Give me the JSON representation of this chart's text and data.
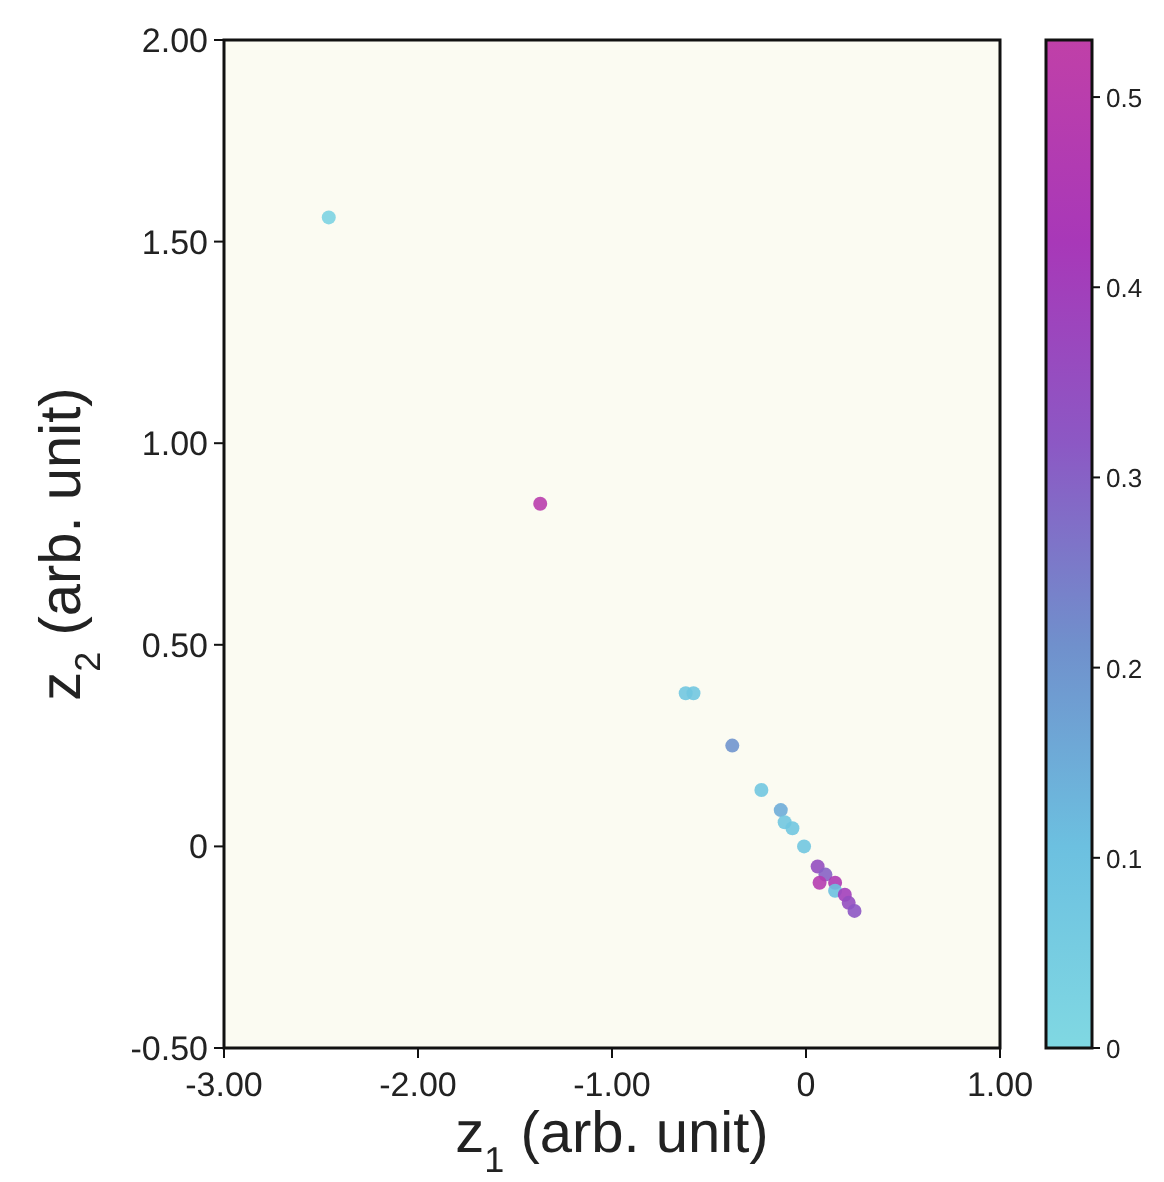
{
  "chart_data": {
    "type": "scatter",
    "xlabel": "z$_{1}$ (arb. unit)",
    "ylabel": "z$_{2}$ (arb. unit)",
    "marker": "circle",
    "grid": false,
    "xlim": [
      -3,
      1
    ],
    "xticks": [
      {
        "value": -3,
        "label": "-3.00"
      },
      {
        "value": -2,
        "label": "-2.00"
      },
      {
        "value": -1,
        "label": "-1.00"
      },
      0,
      {
        "value": 1,
        "label": "1.00"
      }
    ],
    "ylim": [
      -0.5,
      2
    ],
    "yticks": [
      {
        "value": -0.5,
        "label": "-0.50"
      },
      0,
      {
        "value": 0.5,
        "label": "0.50"
      },
      {
        "value": 1,
        "label": "1.00"
      },
      {
        "value": 1.5,
        "label": "1.50"
      },
      {
        "value": 2,
        "label": "2.00"
      }
    ],
    "clim": [
      0,
      0.53
    ],
    "cticks": [
      0,
      0.1,
      0.2,
      0.3,
      0.4,
      0.5
    ],
    "x": [
      -2.46,
      -1.37,
      -0.62,
      -0.58,
      -0.38,
      -0.23,
      -0.13,
      -0.11,
      -0.07,
      -0.01,
      0.06,
      0.1,
      0.07,
      0.15,
      0.15,
      0.2,
      0.22,
      0.25
    ],
    "values": [
      1.56,
      0.85,
      0.38,
      0.38,
      0.25,
      0.14,
      0.09,
      0.06,
      0.045,
      0.0,
      -0.05,
      -0.07,
      -0.09,
      -0.09,
      -0.11,
      -0.12,
      -0.14,
      -0.16
    ],
    "cvalues": [
      0.02,
      0.5,
      0.08,
      0.08,
      0.2,
      0.08,
      0.15,
      0.08,
      0.08,
      0.08,
      0.35,
      0.3,
      0.48,
      0.45,
      0.1,
      0.4,
      0.35,
      0.32
    ]
  }
}
